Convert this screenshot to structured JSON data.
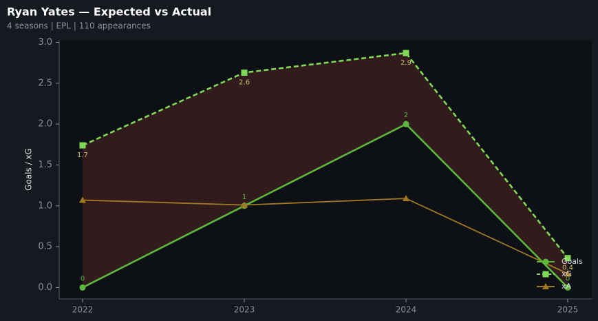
{
  "chart_data": {
    "type": "line",
    "title": "Ryan Yates — Expected vs Actual",
    "subtitle": "4 seasons | EPL | 110 appearances",
    "ylabel": "Goals / xG",
    "categories": [
      "2022",
      "2023",
      "2024",
      "2025"
    ],
    "series": [
      {
        "name": "Goals",
        "color": "#5cb83c",
        "marker": "circle",
        "dash": false,
        "values": [
          0,
          1,
          2,
          0
        ]
      },
      {
        "name": "xG",
        "color": "#7ed957",
        "marker": "square",
        "dash": true,
        "values": [
          1.74,
          2.63,
          2.87,
          0.36
        ],
        "value_labels": [
          "1.7",
          "2.6",
          "2.9",
          "0.4"
        ]
      },
      {
        "name": "xA",
        "color": "#a07a22",
        "marker": "triangle",
        "dash": false,
        "values": [
          1.07,
          1.01,
          1.09,
          0.17
        ]
      }
    ],
    "area_fill": {
      "between": [
        0,
        1
      ],
      "color": "#3a1d1f"
    },
    "ylim": [
      -0.14,
      3.03
    ],
    "yticks": [
      {
        "value": 0,
        "label": "0.0"
      },
      0.5,
      {
        "value": 1,
        "label": "1.0"
      },
      1.5,
      {
        "value": 2,
        "label": "2.0"
      },
      2.5,
      {
        "value": 3,
        "label": "3.0"
      }
    ],
    "legend": "lower right"
  }
}
